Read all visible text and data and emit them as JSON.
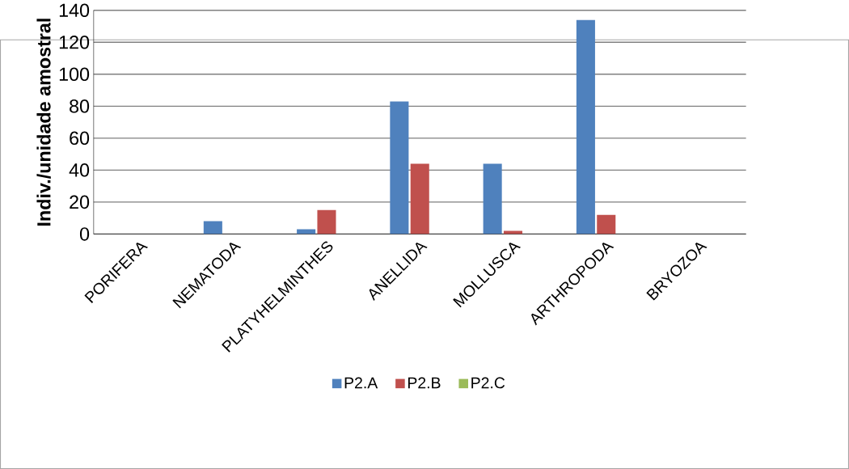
{
  "chart_data": {
    "type": "bar",
    "ylabel": "Indiv./unidade amostral",
    "categories": [
      "PORIFERA",
      "NEMATODA",
      "PLATYHELMINTHES",
      "ANELLIDA",
      "MOLLUSCA",
      "ARTHROPODA",
      "BRYOZOA"
    ],
    "series": [
      {
        "name": "P2.A",
        "color": "#4f81bd",
        "values": [
          0,
          8,
          3,
          83,
          44,
          134,
          0
        ]
      },
      {
        "name": "P2.B",
        "color": "#c0504d",
        "values": [
          0,
          0,
          15,
          44,
          2,
          12,
          0
        ]
      },
      {
        "name": "P2.C",
        "color": "#9bbb59",
        "values": [
          0,
          0,
          0,
          0,
          0,
          0,
          0
        ]
      }
    ],
    "ylim": [
      0,
      140
    ],
    "yticks": [
      0,
      20,
      40,
      60,
      80,
      100,
      120,
      140
    ],
    "grid": "y",
    "legend": "bottom"
  }
}
